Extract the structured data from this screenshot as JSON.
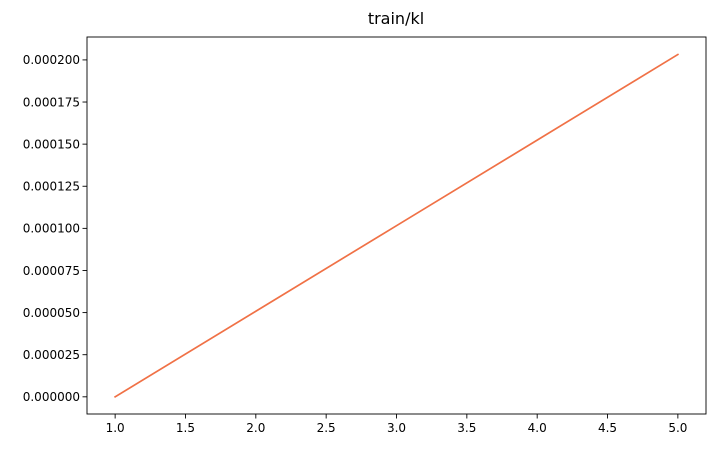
{
  "chart_data": {
    "type": "line",
    "title": "train/kl",
    "xlabel": "",
    "ylabel": "",
    "xlim": [
      0.8,
      5.2
    ],
    "ylim": [
      -1.02e-05,
      0.0002136
    ],
    "x_ticks": [
      1.0,
      1.5,
      2.0,
      2.5,
      3.0,
      3.5,
      4.0,
      4.5,
      5.0
    ],
    "x_tick_labels": [
      "1.0",
      "1.5",
      "2.0",
      "2.5",
      "3.0",
      "3.5",
      "4.0",
      "4.5",
      "5.0"
    ],
    "y_ticks": [
      0,
      2.5e-05,
      5e-05,
      7.5e-05,
      0.0001,
      0.000125,
      0.00015,
      0.000175,
      0.0002
    ],
    "y_tick_labels": [
      "0.000000",
      "0.000025",
      "0.000050",
      "0.000075",
      "0.000100",
      "0.000125",
      "0.000150",
      "0.000175",
      "0.000200"
    ],
    "grid": false,
    "series": [
      {
        "color": "#f07146",
        "x": [
          1,
          2,
          3,
          4,
          5
        ],
        "y": [
          0,
          5.08e-05,
          0.0001016,
          0.0001524,
          0.0002032
        ]
      }
    ]
  }
}
